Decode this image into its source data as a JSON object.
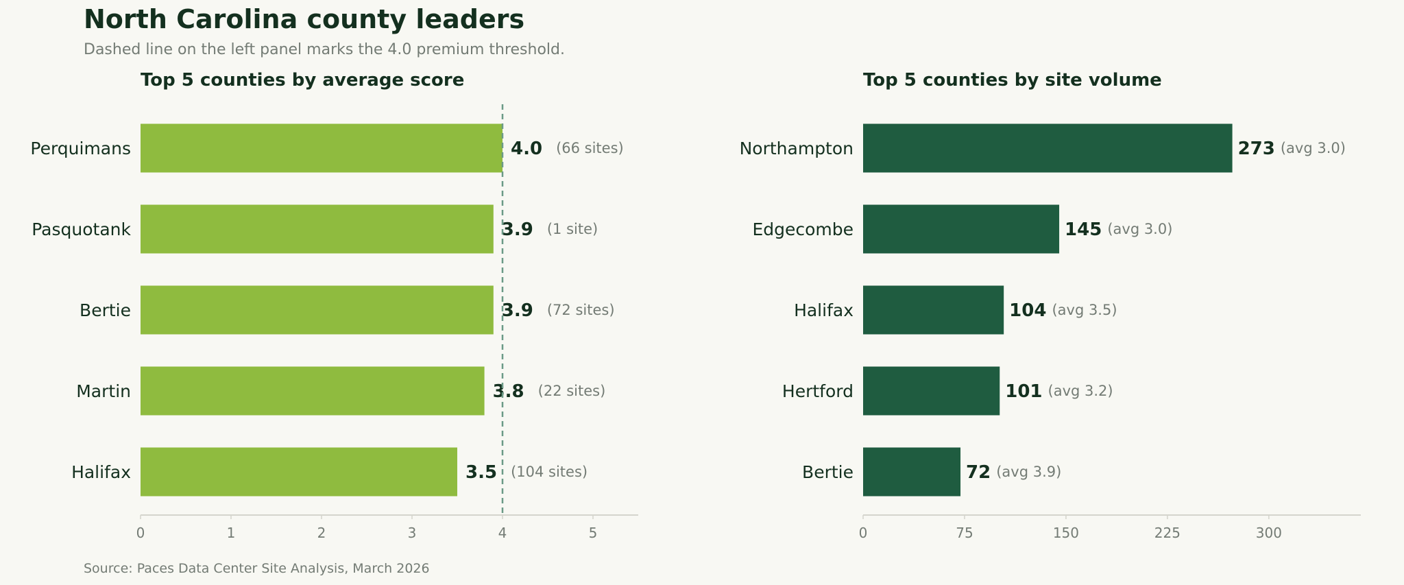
{
  "header": {
    "title": "North Carolina county leaders",
    "subtitle": "Dashed line on the left panel marks the 4.0 premium threshold."
  },
  "footer": {
    "source": "Source: Paces Data Center Site Analysis, March 2026"
  },
  "colors": {
    "left_bar": "#8fbb3f",
    "right_bar": "#1f5c40",
    "threshold_line": "#6b9a86",
    "axis_line": "#d4d4cc"
  },
  "chart_data": [
    {
      "type": "bar",
      "orientation": "horizontal",
      "title": "Top 5 counties by average score",
      "categories": [
        "Perquimans",
        "Pasquotank",
        "Bertie",
        "Martin",
        "Halifax"
      ],
      "values": [
        4.0,
        3.9,
        3.9,
        3.8,
        3.5
      ],
      "value_labels": [
        "4.0",
        "3.9",
        "3.9",
        "3.8",
        "3.5"
      ],
      "annotations": [
        "(66 sites)",
        "(1 site)",
        "(72 sites)",
        "(22 sites)",
        "(104 sites)"
      ],
      "xlim": [
        0,
        5.5
      ],
      "xticks": [
        0,
        1,
        2,
        3,
        4,
        5
      ],
      "xtick_labels": [
        "0",
        "1",
        "2",
        "3",
        "4",
        "5"
      ],
      "threshold": 4.0,
      "xlabel": "",
      "ylabel": ""
    },
    {
      "type": "bar",
      "orientation": "horizontal",
      "title": "Top 5 counties by site volume",
      "categories": [
        "Northampton",
        "Edgecombe",
        "Halifax",
        "Hertford",
        "Bertie"
      ],
      "values": [
        273,
        145,
        104,
        101,
        72
      ],
      "value_labels": [
        "273",
        "145",
        "104",
        "101",
        "72"
      ],
      "annotations": [
        "(avg 3.0)",
        "(avg 3.0)",
        "(avg 3.5)",
        "(avg 3.2)",
        "(avg 3.9)"
      ],
      "xlim": [
        0,
        368
      ],
      "xticks": [
        0,
        75,
        150,
        225,
        300
      ],
      "xtick_labels": [
        "0",
        "75",
        "150",
        "225",
        "300"
      ],
      "xlabel": "",
      "ylabel": ""
    }
  ]
}
